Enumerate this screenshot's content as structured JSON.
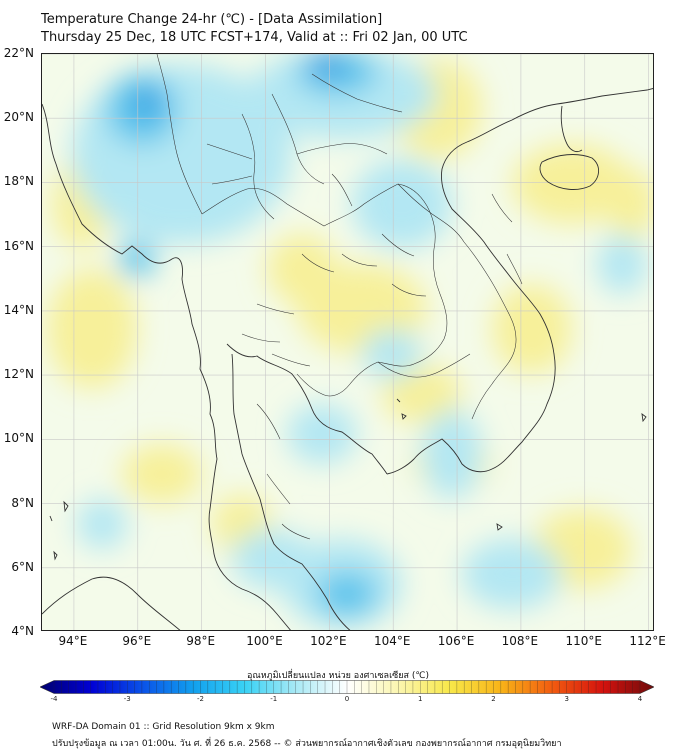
{
  "title": {
    "line1": "Temperature Change 24-hr (℃) - [Data Assimilation]",
    "line2": "Thursday 25 Dec, 18 UTC FCST+174, Valid at :: Fri 02 Jan, 00 UTC"
  },
  "map": {
    "lat_labels": [
      "22°N",
      "20°N",
      "18°N",
      "16°N",
      "14°N",
      "12°N",
      "10°N",
      "8°N",
      "6°N",
      "4°N"
    ],
    "lon_labels": [
      "94°E",
      "96°E",
      "98°E",
      "100°E",
      "102°E",
      "104°E",
      "106°E",
      "108°E",
      "110°E",
      "112°E"
    ],
    "lat_range": [
      4,
      22
    ],
    "lon_range": [
      93,
      112.2
    ],
    "field_colors": {
      "background": "#f4fbea",
      "warm": "#f7f09a",
      "cool": "#b3e7f3",
      "cold": "#5cc4ec",
      "coldest": "#2f8fe0",
      "grid": "#c8c8c8",
      "border": "#333333"
    }
  },
  "colorbar": {
    "title": "อุณหภูมิเปลี่ยนแปลง หน่วย องศาเซลเซียส (℃)",
    "ticks": [
      "-4",
      "-3",
      "-2",
      "-1",
      "0",
      "1",
      "2",
      "3",
      "4"
    ],
    "range": [
      -4,
      4
    ],
    "stops": [
      "#00006e",
      "#0000d4",
      "#0a52e8",
      "#12a0ee",
      "#39d2f5",
      "#a8e9f5",
      "#ffffff",
      "#fbf6b0",
      "#f8e84a",
      "#f8b418",
      "#f25c10",
      "#d4120e",
      "#6e0c0c"
    ]
  },
  "footer": {
    "line1": "WRF-DA Domain 01 :: Grid Resolution 9km x 9km",
    "line2": "ปรับปรุงข้อมูล ณ เวลา 01:00น. วัน ศ. ที่ 26 ธ.ค. 2568 -- © ส่วนพยากรณ์อากาศเชิงตัวเลข กองพยากรณ์อากาศ กรมอุตุนิยมวิทยา"
  }
}
